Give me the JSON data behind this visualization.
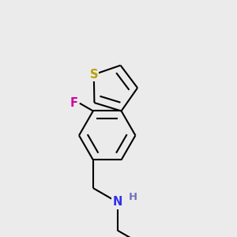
{
  "background_color": "#ebebeb",
  "bond_color": "#000000",
  "bond_width": 1.5,
  "atom_labels": {
    "S": {
      "color": "#b8a000",
      "fontsize": 10.5
    },
    "F": {
      "color": "#d000a0",
      "fontsize": 10.5
    },
    "N": {
      "color": "#3030ee",
      "fontsize": 10.5
    },
    "H": {
      "color": "#7070bb",
      "fontsize": 9.5
    }
  },
  "figsize": [
    3.0,
    3.0
  ],
  "dpi": 100
}
